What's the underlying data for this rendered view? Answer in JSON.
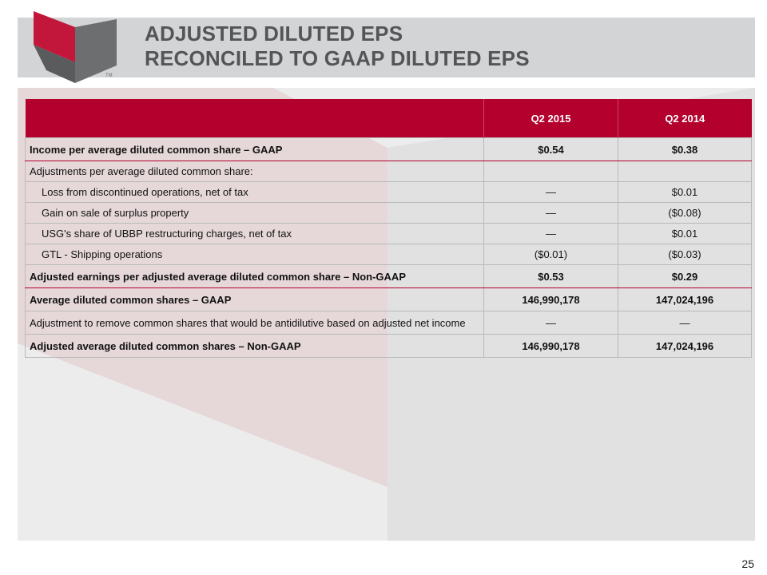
{
  "slide": {
    "title_line1": "ADJUSTED DILUTED EPS",
    "title_line2": "RECONCILED TO GAAP DILUTED EPS",
    "logo_tm": "TM",
    "page_number": "25"
  },
  "table": {
    "columns": [
      "",
      "Q2 2015",
      "Q2 2014"
    ],
    "rows": [
      {
        "label": "Income per average diluted common share – GAAP",
        "q2_2015": "$0.54",
        "q2_2014": "$0.38"
      },
      {
        "label": "Adjustments per average diluted common share:",
        "q2_2015": "",
        "q2_2014": ""
      },
      {
        "label": "Loss from discontinued operations, net of tax",
        "q2_2015": "—",
        "q2_2014": "$0.01"
      },
      {
        "label": "Gain on sale of surplus property",
        "q2_2015": "—",
        "q2_2014": "($0.08)"
      },
      {
        "label": "USG's share of UBBP restructuring charges, net of tax",
        "q2_2015": "—",
        "q2_2014": "$0.01"
      },
      {
        "label": "GTL - Shipping operations",
        "q2_2015": "($0.01)",
        "q2_2014": "($0.03)"
      },
      {
        "label": "Adjusted earnings per adjusted average diluted common share – Non-GAAP",
        "q2_2015": "$0.53",
        "q2_2014": "$0.29"
      },
      {
        "label": "Average diluted common shares – GAAP",
        "q2_2015": "146,990,178",
        "q2_2014": "147,024,196"
      },
      {
        "label": "Adjustment to remove common shares that would be antidilutive based on adjusted net income",
        "q2_2015": "—",
        "q2_2014": "—"
      },
      {
        "label": "Adjusted average diluted common shares – Non-GAAP",
        "q2_2015": "146,990,178",
        "q2_2014": "147,024,196"
      }
    ]
  },
  "colors": {
    "brand_red": "#b3002d",
    "header_gray": "#d3d4d6",
    "logo_gray": "#6d6e70",
    "title_gray": "#545557"
  }
}
